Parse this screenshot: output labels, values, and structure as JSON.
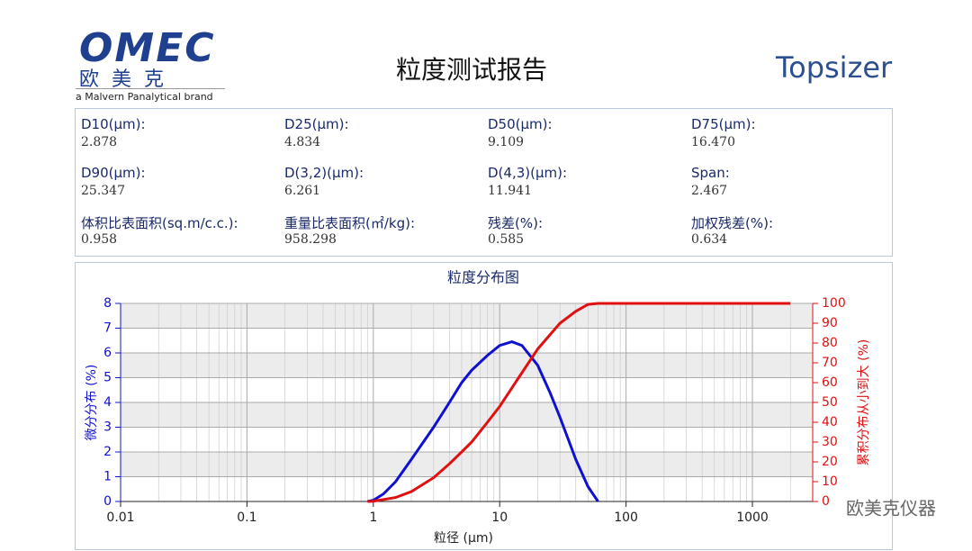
{
  "header": {
    "logo": "OMEC",
    "logo_cn": "欧美克",
    "brand": "a Malvern Panalytical brand",
    "title": "粒度测试报告",
    "product": "Topsizer"
  },
  "stats": [
    [
      {
        "label": "D10(μm):",
        "value": "2.878"
      },
      {
        "label": "D25(μm):",
        "value": "4.834"
      },
      {
        "label": "D50(μm):",
        "value": "9.109"
      },
      {
        "label": "D75(μm):",
        "value": "16.470"
      }
    ],
    [
      {
        "label": "D90(μm):",
        "value": "25.347"
      },
      {
        "label": "D(3,2)(μm):",
        "value": "6.261"
      },
      {
        "label": "D(4,3)(μm):",
        "value": "11.941"
      },
      {
        "label": "Span:",
        "value": "2.467"
      }
    ],
    [
      {
        "label": "体积比表面积(sq.m/c.c.):",
        "value": "0.958"
      },
      {
        "label": "重量比表面积(㎡/kg):",
        "value": "958.298"
      },
      {
        "label": "残差(%):",
        "value": "0.585"
      },
      {
        "label": "加权残差(%):",
        "value": "0.634"
      }
    ]
  ],
  "chart_data": {
    "type": "line",
    "title": "粒度分布图",
    "x_label": "粒径 (μm)",
    "y_label": "微分分布 (%)",
    "y2_label": "累积分布从小到大 (%)",
    "log_x": true,
    "grid": true,
    "xlim": [
      0.01,
      3000
    ],
    "xticks": [
      0.01,
      0.1,
      1,
      10,
      100,
      1000
    ],
    "ylim": [
      0,
      8
    ],
    "yticks": [
      0,
      1,
      2,
      3,
      4,
      5,
      6,
      7,
      8
    ],
    "y2lim": [
      0,
      100
    ],
    "y2ticks": [
      0,
      10,
      20,
      30,
      40,
      50,
      60,
      70,
      80,
      90,
      100
    ],
    "series": [
      {
        "name": "微分分布",
        "color": "#1010d0",
        "x": [
          0.9,
          1,
          1.2,
          1.5,
          2,
          3,
          4,
          5,
          6,
          8,
          10,
          12.5,
          15,
          20,
          25,
          30,
          40,
          50,
          60
        ],
        "values": [
          0,
          0.05,
          0.3,
          0.8,
          1.7,
          3.0,
          4.0,
          4.8,
          5.3,
          5.9,
          6.3,
          6.45,
          6.3,
          5.5,
          4.4,
          3.4,
          1.7,
          0.6,
          0
        ]
      },
      {
        "name": "累积分布",
        "color": "#e01010",
        "axis": "y2",
        "x": [
          0.9,
          1,
          1.5,
          2,
          3,
          4,
          5,
          6,
          8,
          10,
          15,
          20,
          30,
          40,
          50,
          60,
          100,
          2000
        ],
        "values": [
          0,
          0.1,
          2,
          5,
          12,
          19,
          25,
          30,
          40,
          48,
          65,
          77,
          90,
          96,
          99.5,
          100,
          100,
          100
        ]
      }
    ]
  },
  "watermark": "欧美克仪器"
}
